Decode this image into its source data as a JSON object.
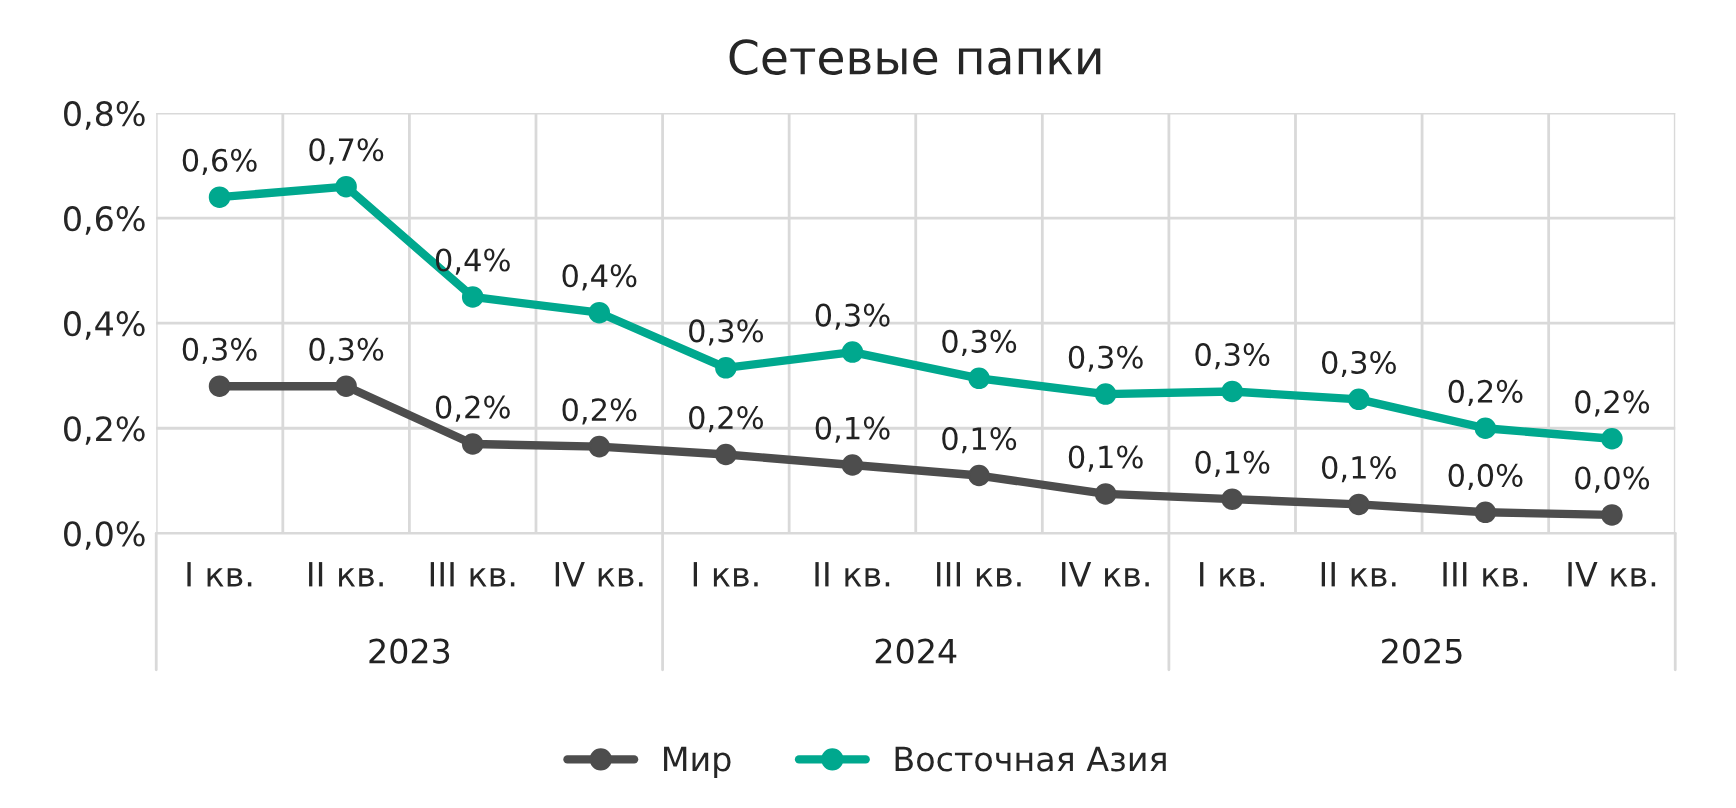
{
  "chart_data": {
    "type": "line",
    "title": "Сетевые папки",
    "categories": [
      "I кв.",
      "II кв.",
      "III кв.",
      "IV кв.",
      "I кв.",
      "II кв.",
      "III кв.",
      "IV кв.",
      "I кв.",
      "II кв.",
      "III кв.",
      "IV кв."
    ],
    "series": [
      {
        "name": "Мир",
        "color": "#4d4d4d",
        "values": [
          0.28,
          0.28,
          0.17,
          0.165,
          0.15,
          0.13,
          0.11,
          0.075,
          0.065,
          0.055,
          0.04,
          0.035
        ],
        "value_labels": [
          "0,3%",
          "0,3%",
          "0,2%",
          "0,2%",
          "0,2%",
          "0,1%",
          "0,1%",
          "0,1%",
          "0,1%",
          "0,1%",
          "0,0%",
          "0,0%"
        ]
      },
      {
        "name": "Восточная Азия",
        "color": "#00a88e",
        "values": [
          0.64,
          0.66,
          0.45,
          0.42,
          0.315,
          0.345,
          0.295,
          0.265,
          0.27,
          0.255,
          0.2,
          0.18
        ],
        "value_labels": [
          "0,6%",
          "0,7%",
          "0,4%",
          "0,4%",
          "0,3%",
          "0,3%",
          "0,3%",
          "0,3%",
          "0,3%",
          "0,3%",
          "0,2%",
          "0,2%"
        ]
      }
    ],
    "ylim": [
      0,
      0.8
    ],
    "yticks": [
      {
        "value": 0,
        "label": "0,0%"
      },
      {
        "value": 0.2,
        "label": "0,2%"
      },
      {
        "value": 0.4,
        "label": "0,4%"
      },
      {
        "value": 0.6,
        "label": "0,6%"
      },
      {
        "value": 0.8,
        "label": "0,8%"
      }
    ],
    "annotations": [
      "2023",
      "2024",
      "2025"
    ],
    "grid": true,
    "legend": "bottom",
    "marker": "circle",
    "line_style": "solid"
  }
}
